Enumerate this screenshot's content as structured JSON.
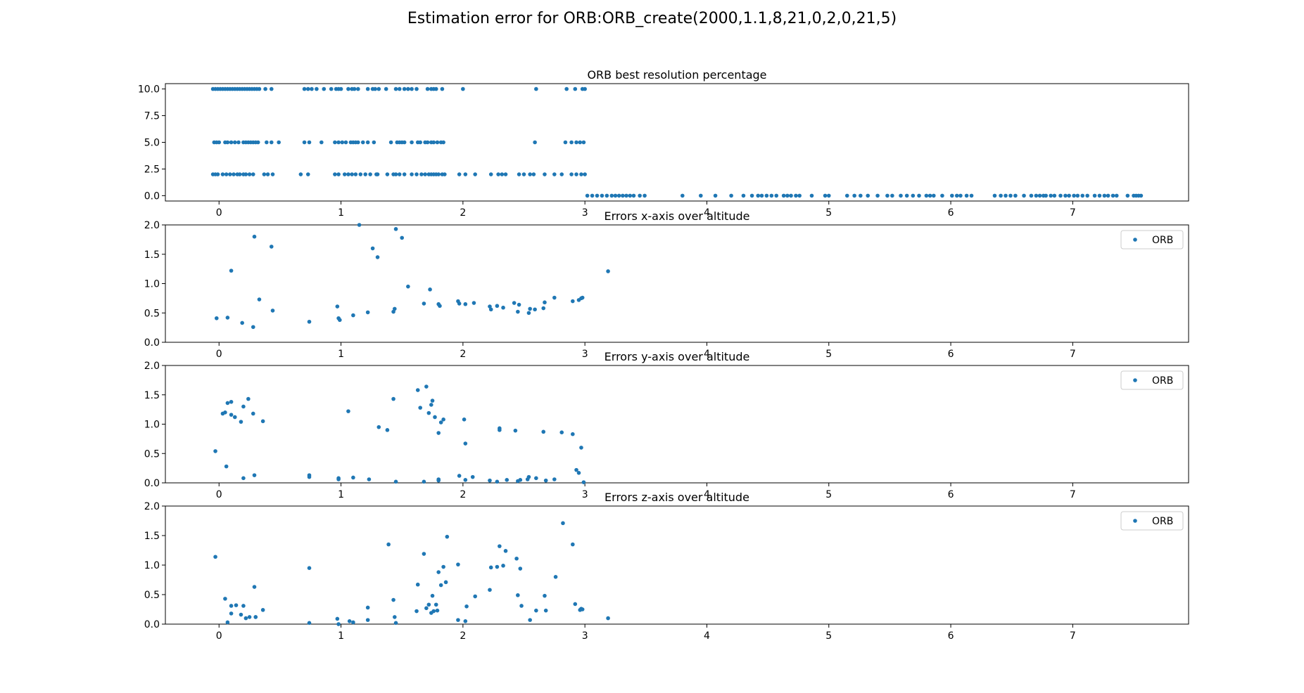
{
  "figure": {
    "title": "Estimation error for ORB:ORB_create(2000,1.1,8,21,0,2,0,21,5)",
    "marker_color": "#1f77b4"
  },
  "chart_data": [
    {
      "type": "scatter",
      "title": "ORB best resolution percentage",
      "xlabel": "",
      "ylabel": "",
      "xlim": [
        -0.44,
        7.95
      ],
      "ylim": [
        -0.5,
        10.5
      ],
      "xticks": [
        0,
        1,
        2,
        3,
        4,
        5,
        6,
        7
      ],
      "yticks": [
        0.0,
        2.5,
        5.0,
        7.5,
        10.0
      ],
      "ytick_labels": [
        "0.0",
        "2.5",
        "5.0",
        "7.5",
        "10.0"
      ],
      "grid": false,
      "legend": null,
      "series": [
        {
          "x": [
            -0.05,
            -0.03,
            -0.01,
            0.01,
            0.03,
            0.05,
            0.07,
            0.09,
            0.11,
            0.13,
            0.15,
            0.17,
            0.19,
            0.21,
            0.23,
            0.25,
            0.27,
            0.29,
            0.31,
            0.33,
            0.38,
            0.43,
            0.7,
            0.73,
            0.76,
            0.8,
            0.86,
            0.92,
            0.96,
            0.98,
            1.0,
            1.06,
            1.09,
            1.11,
            1.14,
            1.22,
            1.26,
            1.28,
            1.31,
            1.37,
            1.45,
            1.48,
            1.52,
            1.55,
            1.58,
            1.62,
            1.71,
            1.74,
            1.76,
            1.78,
            1.83,
            2.0,
            2.6,
            2.85,
            2.92,
            2.98,
            3.0,
            -0.04,
            -0.02,
            0.0,
            0.05,
            0.07,
            0.1,
            0.13,
            0.16,
            0.2,
            0.22,
            0.24,
            0.26,
            0.28,
            0.3,
            0.32,
            0.39,
            0.43,
            0.49,
            0.7,
            0.74,
            0.84,
            0.95,
            0.98,
            1.01,
            1.04,
            1.08,
            1.1,
            1.12,
            1.14,
            1.18,
            1.22,
            1.27,
            1.41,
            1.46,
            1.48,
            1.5,
            1.52,
            1.58,
            1.63,
            1.65,
            1.69,
            1.71,
            1.74,
            1.76,
            1.79,
            1.82,
            1.84,
            2.59,
            2.84,
            2.89,
            2.93,
            2.96,
            2.99,
            -0.05,
            -0.03,
            -0.01,
            0.03,
            0.06,
            0.09,
            0.12,
            0.15,
            0.17,
            0.2,
            0.22,
            0.25,
            0.28,
            0.37,
            0.4,
            0.44,
            0.67,
            0.73,
            0.95,
            0.98,
            1.03,
            1.06,
            1.09,
            1.12,
            1.16,
            1.2,
            1.24,
            1.29,
            1.3,
            1.38,
            1.43,
            1.45,
            1.48,
            1.52,
            1.58,
            1.62,
            1.66,
            1.69,
            1.72,
            1.74,
            1.76,
            1.78,
            1.8,
            1.83,
            1.85,
            1.97,
            2.02,
            2.1,
            2.23,
            2.29,
            2.32,
            2.35,
            2.46,
            2.5,
            2.55,
            2.58,
            2.67,
            2.75,
            2.81,
            2.89,
            2.93,
            2.97,
            3.0,
            3.02,
            3.06,
            3.1,
            3.14,
            3.18,
            3.22,
            3.25,
            3.28,
            3.31,
            3.34,
            3.37,
            3.4,
            3.45,
            3.49,
            3.8,
            3.95,
            4.07,
            4.2,
            4.3,
            4.37,
            4.42,
            4.45,
            4.49,
            4.53,
            4.57,
            4.63,
            4.66,
            4.69,
            4.73,
            4.76,
            4.86,
            4.97,
            5.0,
            5.15,
            5.21,
            5.26,
            5.32,
            5.4,
            5.48,
            5.52,
            5.59,
            5.64,
            5.69,
            5.74,
            5.8,
            5.83,
            5.86,
            5.93,
            6.01,
            6.05,
            6.08,
            6.13,
            6.17,
            6.36,
            6.41,
            6.45,
            6.49,
            6.53,
            6.6,
            6.66,
            6.7,
            6.73,
            6.76,
            6.78,
            6.82,
            6.85,
            6.9,
            6.94,
            6.97,
            7.01,
            7.04,
            7.08,
            7.12,
            7.18,
            7.22,
            7.26,
            7.29,
            7.33,
            7.36,
            7.45,
            7.5,
            7.52,
            7.54,
            7.56
          ],
          "y": [
            10,
            10,
            10,
            10,
            10,
            10,
            10,
            10,
            10,
            10,
            10,
            10,
            10,
            10,
            10,
            10,
            10,
            10,
            10,
            10,
            10,
            10,
            10,
            10,
            10,
            10,
            10,
            10,
            10,
            10,
            10,
            10,
            10,
            10,
            10,
            10,
            10,
            10,
            10,
            10,
            10,
            10,
            10,
            10,
            10,
            10,
            10,
            10,
            10,
            10,
            10,
            10,
            10,
            10,
            10,
            10,
            10,
            5,
            5,
            5,
            5,
            5,
            5,
            5,
            5,
            5,
            5,
            5,
            5,
            5,
            5,
            5,
            5,
            5,
            5,
            5,
            5,
            5,
            5,
            5,
            5,
            5,
            5,
            5,
            5,
            5,
            5,
            5,
            5,
            5,
            5,
            5,
            5,
            5,
            5,
            5,
            5,
            5,
            5,
            5,
            5,
            5,
            5,
            5,
            5,
            5,
            5,
            5,
            5,
            5,
            2,
            2,
            2,
            2,
            2,
            2,
            2,
            2,
            2,
            2,
            2,
            2,
            2,
            2,
            2,
            2,
            2,
            2,
            2,
            2,
            2,
            2,
            2,
            2,
            2,
            2,
            2,
            2,
            2,
            2,
            2,
            2,
            2,
            2,
            2,
            2,
            2,
            2,
            2,
            2,
            2,
            2,
            2,
            2,
            2,
            2,
            2,
            2,
            2,
            2,
            2,
            2,
            2,
            2,
            2,
            2,
            2,
            2,
            2,
            2,
            2,
            2,
            2,
            0,
            0,
            0,
            0,
            0,
            0,
            0,
            0,
            0,
            0,
            0,
            0,
            0,
            0,
            0,
            0,
            0,
            0,
            0,
            0,
            0,
            0,
            0,
            0,
            0,
            0,
            0,
            0,
            0,
            0,
            0,
            0,
            0,
            0,
            0,
            0,
            0,
            0,
            0,
            0,
            0,
            0,
            0,
            0,
            0,
            0,
            0,
            0,
            0,
            0,
            0,
            0,
            0,
            0,
            0,
            0,
            0,
            0,
            0,
            0,
            0,
            0,
            0,
            0,
            0,
            0,
            0,
            0,
            0,
            0,
            0,
            0,
            0,
            0,
            0,
            0,
            0,
            0,
            0,
            0,
            0,
            0,
            0,
            0
          ]
        }
      ]
    },
    {
      "type": "scatter",
      "title": "Errors x-axis over altitude",
      "xlabel": "",
      "ylabel": "",
      "xlim": [
        -0.44,
        7.95
      ],
      "ylim": [
        0,
        2
      ],
      "xticks": [
        0,
        1,
        2,
        3,
        4,
        5,
        6,
        7
      ],
      "yticks": [
        0.0,
        0.5,
        1.0,
        1.5,
        2.0
      ],
      "ytick_labels": [
        "0.0",
        "0.5",
        "1.0",
        "1.5",
        "2.0"
      ],
      "grid": false,
      "legend": "top-right",
      "series": [
        {
          "name": "ORB",
          "x": [
            -0.02,
            0.07,
            0.1,
            0.19,
            0.28,
            0.29,
            0.33,
            0.43,
            0.44,
            0.74,
            0.97,
            0.98,
            0.99,
            1.1,
            1.15,
            1.22,
            1.26,
            1.3,
            1.43,
            1.44,
            1.45,
            1.5,
            1.55,
            1.68,
            1.73,
            1.8,
            1.81,
            1.96,
            1.97,
            2.02,
            2.09,
            2.22,
            2.23,
            2.28,
            2.33,
            2.42,
            2.45,
            2.46,
            2.54,
            2.55,
            2.59,
            2.66,
            2.67,
            2.75,
            2.9,
            2.95,
            2.97,
            2.98,
            3.19
          ],
          "y": [
            0.41,
            0.42,
            1.22,
            0.33,
            0.26,
            1.8,
            0.73,
            1.63,
            0.54,
            0.35,
            0.61,
            0.41,
            0.38,
            0.46,
            2.0,
            0.51,
            1.6,
            1.45,
            0.52,
            0.57,
            1.93,
            1.78,
            0.95,
            0.66,
            0.9,
            0.65,
            0.62,
            0.7,
            0.66,
            0.65,
            0.67,
            0.61,
            0.56,
            0.62,
            0.59,
            0.67,
            0.52,
            0.64,
            0.5,
            0.57,
            0.56,
            0.58,
            0.68,
            0.76,
            0.7,
            0.72,
            0.75,
            0.76,
            1.21
          ]
        }
      ]
    },
    {
      "type": "scatter",
      "title": "Errors y-axis over altitude",
      "xlabel": "",
      "ylabel": "",
      "xlim": [
        -0.44,
        7.95
      ],
      "ylim": [
        0,
        2
      ],
      "xticks": [
        0,
        1,
        2,
        3,
        4,
        5,
        6,
        7
      ],
      "yticks": [
        0.0,
        0.5,
        1.0,
        1.5,
        2.0
      ],
      "ytick_labels": [
        "0.0",
        "0.5",
        "1.0",
        "1.5",
        "2.0"
      ],
      "grid": false,
      "legend": "top-right",
      "series": [
        {
          "name": "ORB",
          "x": [
            -0.03,
            0.03,
            0.05,
            0.07,
            0.1,
            0.1,
            0.13,
            0.18,
            0.2,
            0.24,
            0.28,
            0.36,
            0.06,
            0.2,
            0.29,
            0.74,
            0.74,
            0.98,
            0.98,
            1.06,
            1.1,
            1.23,
            1.31,
            1.38,
            1.43,
            1.45,
            1.63,
            1.65,
            1.68,
            1.7,
            1.72,
            1.74,
            1.75,
            1.77,
            1.8,
            1.82,
            1.84,
            1.8,
            1.8,
            1.97,
            2.01,
            2.02,
            2.02,
            2.08,
            2.22,
            2.28,
            2.3,
            2.3,
            2.36,
            2.43,
            2.45,
            2.47,
            2.53,
            2.54,
            2.6,
            2.66,
            2.68,
            2.75,
            2.81,
            2.9,
            2.93,
            2.95,
            2.97,
            2.99
          ],
          "y": [
            0.54,
            1.18,
            1.2,
            1.36,
            1.38,
            1.16,
            1.12,
            1.04,
            1.3,
            1.43,
            1.18,
            1.05,
            0.28,
            0.08,
            0.13,
            0.13,
            0.1,
            0.08,
            0.06,
            1.22,
            0.09,
            0.06,
            0.95,
            0.9,
            1.43,
            0.02,
            1.58,
            1.28,
            0.02,
            1.64,
            1.19,
            1.33,
            1.4,
            1.12,
            0.85,
            1.03,
            1.08,
            0.04,
            0.06,
            0.12,
            1.08,
            0.67,
            0.05,
            0.1,
            0.04,
            0.02,
            0.93,
            0.9,
            0.05,
            0.89,
            0.03,
            0.05,
            0.06,
            0.1,
            0.08,
            0.87,
            0.04,
            0.06,
            0.86,
            0.83,
            0.22,
            0.17,
            0.6,
            0.01
          ]
        }
      ]
    },
    {
      "type": "scatter",
      "title": "Errors z-axis over altitude",
      "xlabel": "",
      "ylabel": "",
      "xlim": [
        -0.44,
        7.95
      ],
      "ylim": [
        0,
        2
      ],
      "xticks": [
        0,
        1,
        2,
        3,
        4,
        5,
        6,
        7
      ],
      "yticks": [
        0.0,
        0.5,
        1.0,
        1.5,
        2.0
      ],
      "ytick_labels": [
        "0.0",
        "0.5",
        "1.0",
        "1.5",
        "2.0"
      ],
      "grid": false,
      "legend": "top-right",
      "series": [
        {
          "name": "ORB",
          "x": [
            -0.03,
            0.05,
            0.07,
            0.1,
            0.1,
            0.14,
            0.18,
            0.2,
            0.22,
            0.25,
            0.29,
            0.3,
            0.3,
            0.36,
            0.74,
            0.74,
            0.97,
            0.98,
            1.07,
            1.1,
            1.22,
            1.22,
            1.39,
            1.43,
            1.44,
            1.45,
            1.62,
            1.63,
            1.68,
            1.7,
            1.72,
            1.74,
            1.75,
            1.76,
            1.78,
            1.79,
            1.8,
            1.82,
            1.84,
            1.86,
            1.87,
            1.96,
            1.96,
            2.02,
            2.03,
            2.1,
            2.22,
            2.23,
            2.28,
            2.3,
            2.33,
            2.35,
            2.44,
            2.45,
            2.47,
            2.48,
            2.55,
            2.6,
            2.67,
            2.68,
            2.76,
            2.82,
            2.9,
            2.92,
            2.96,
            2.97,
            2.98,
            3.19
          ],
          "y": [
            1.14,
            0.43,
            0.03,
            0.18,
            0.31,
            0.32,
            0.16,
            0.31,
            0.1,
            0.12,
            0.63,
            0.12,
            0.12,
            0.24,
            0.95,
            0.02,
            0.09,
            0.0,
            0.05,
            0.03,
            0.28,
            0.07,
            1.35,
            0.41,
            0.12,
            0.02,
            0.22,
            0.67,
            1.19,
            0.27,
            0.33,
            0.19,
            0.48,
            0.22,
            0.33,
            0.23,
            0.88,
            0.66,
            0.97,
            0.71,
            1.48,
            1.01,
            0.07,
            0.05,
            0.3,
            0.47,
            0.58,
            0.96,
            0.97,
            1.32,
            0.99,
            1.24,
            1.11,
            0.49,
            0.94,
            0.31,
            0.07,
            0.23,
            0.48,
            0.23,
            0.8,
            1.71,
            1.35,
            0.34,
            0.24,
            0.26,
            0.25,
            0.1
          ]
        }
      ]
    }
  ]
}
